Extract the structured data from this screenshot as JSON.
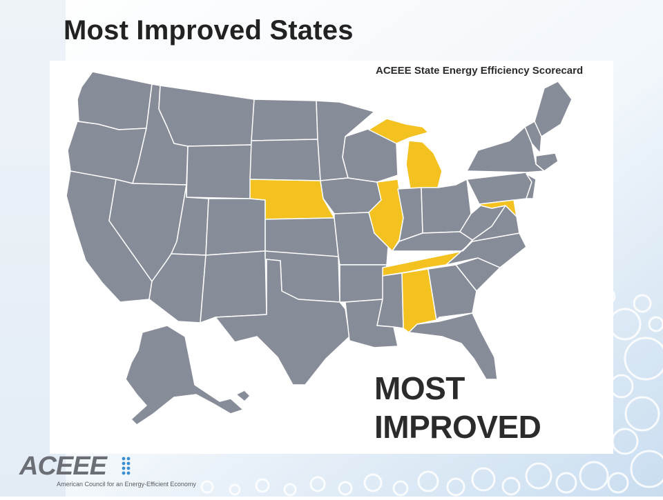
{
  "slide": {
    "title": "Most Improved States"
  },
  "map": {
    "scorecard_label": "ACEEE State Energy Efficiency Scorecard",
    "callout_line1": "MOST",
    "callout_line2": "IMPROVED",
    "highlighted_states": [
      "Michigan",
      "Nebraska",
      "Illinois",
      "Tennessee",
      "Alabama",
      "Maryland"
    ],
    "colors": {
      "state_fill": "#878c99",
      "highlight_fill": "#f3c220",
      "border": "#ffffff"
    }
  },
  "logo": {
    "wordmark": "ACEEE",
    "subtitle": "American Council for an Energy-Efficient Economy"
  },
  "theme": {
    "background_accent": "#cfe0f0"
  }
}
